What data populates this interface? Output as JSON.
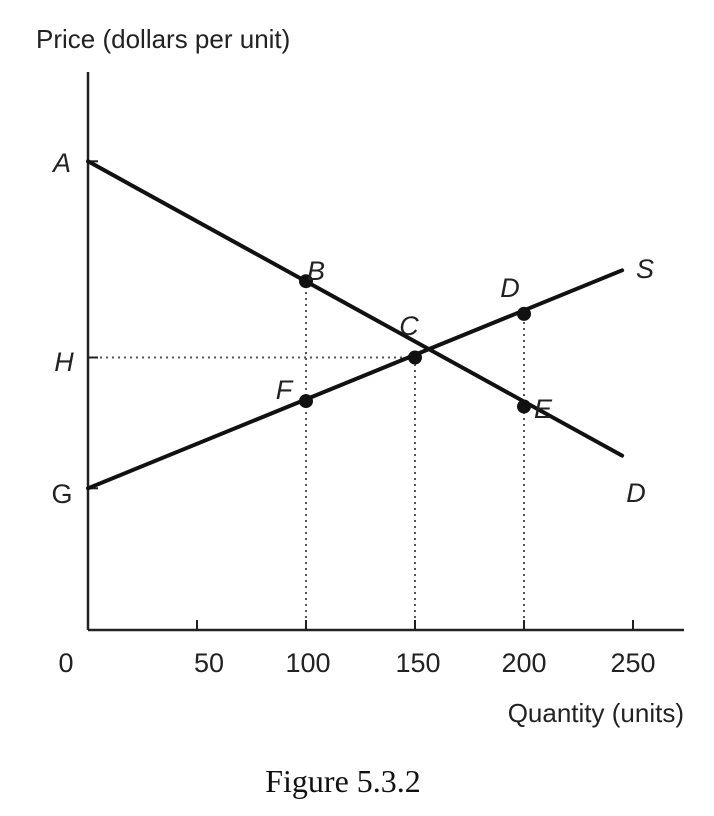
{
  "chart_data": {
    "type": "line",
    "ylabel": "Price (dollars per unit)",
    "xlabel": "Quantity (units)",
    "caption": "Figure 5.3.2",
    "origin_label": "0",
    "x_ticks": [
      "50",
      "100",
      "150",
      "200",
      "250"
    ],
    "x_tick_values": [
      50,
      100,
      150,
      200,
      250
    ],
    "xlim": [
      0,
      270
    ],
    "price_axis_labels": [
      {
        "label": "A",
        "price": 4.3
      },
      {
        "label": "H",
        "price": 2.5
      },
      {
        "label": "G",
        "price": 1.3
      }
    ],
    "series": [
      {
        "name": "D",
        "points": [
          [
            0,
            4.3
          ],
          [
            245,
            1.6
          ]
        ]
      },
      {
        "name": "S",
        "points": [
          [
            0,
            1.3
          ],
          [
            245,
            3.3
          ]
        ]
      }
    ],
    "points": [
      {
        "label": "B",
        "x": 100,
        "y": 3.2
      },
      {
        "label": "C",
        "x": 150,
        "y": 2.5
      },
      {
        "label": "D",
        "x": 200,
        "y": 2.9
      },
      {
        "label": "E",
        "x": 200,
        "y": 2.05
      },
      {
        "label": "F",
        "x": 100,
        "y": 2.1
      }
    ],
    "guides": [
      {
        "type": "horizontal",
        "y": 2.5,
        "x_to": 150
      },
      {
        "type": "vertical",
        "x": 100,
        "y_to": 3.2
      },
      {
        "type": "vertical",
        "x": 150,
        "y_to": 2.5
      },
      {
        "type": "vertical",
        "x": 200,
        "y_to": 2.9
      }
    ],
    "grid": false,
    "colors": {
      "lines": "#111111",
      "axes": "#222222",
      "guides": "#555555"
    }
  }
}
